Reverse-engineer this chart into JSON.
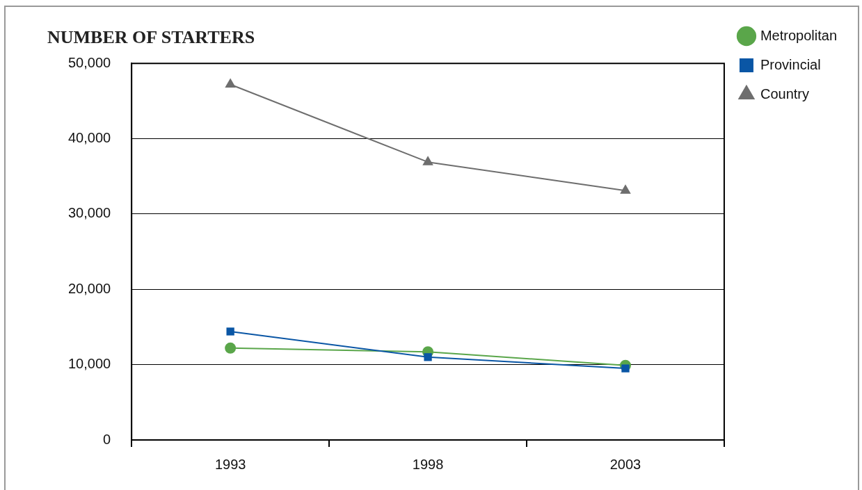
{
  "chart_data": {
    "type": "line",
    "title": "NUMBER OF STARTERS",
    "categories": [
      "1993",
      "1998",
      "2003"
    ],
    "series": [
      {
        "name": "Metropolitan",
        "color": "#5aa64a",
        "marker": "circle",
        "values": [
          12200,
          11700,
          9900
        ]
      },
      {
        "name": "Provincial",
        "color": "#0a56a5",
        "marker": "square",
        "values": [
          14400,
          11000,
          9500
        ]
      },
      {
        "name": "Country",
        "color": "#6e6e6e",
        "marker": "triangle",
        "values": [
          47200,
          36900,
          33100
        ]
      }
    ],
    "ylim": [
      0,
      50000
    ],
    "yticks": [
      0,
      {
        "value": 10000,
        "label": "10,000"
      },
      {
        "value": 20000,
        "label": "20,000"
      },
      {
        "value": 30000,
        "label": "30,000"
      },
      {
        "value": 40000,
        "label": "40,000"
      },
      {
        "value": 50000,
        "label": "50,000"
      }
    ],
    "grid": "y",
    "legend": "top right"
  }
}
